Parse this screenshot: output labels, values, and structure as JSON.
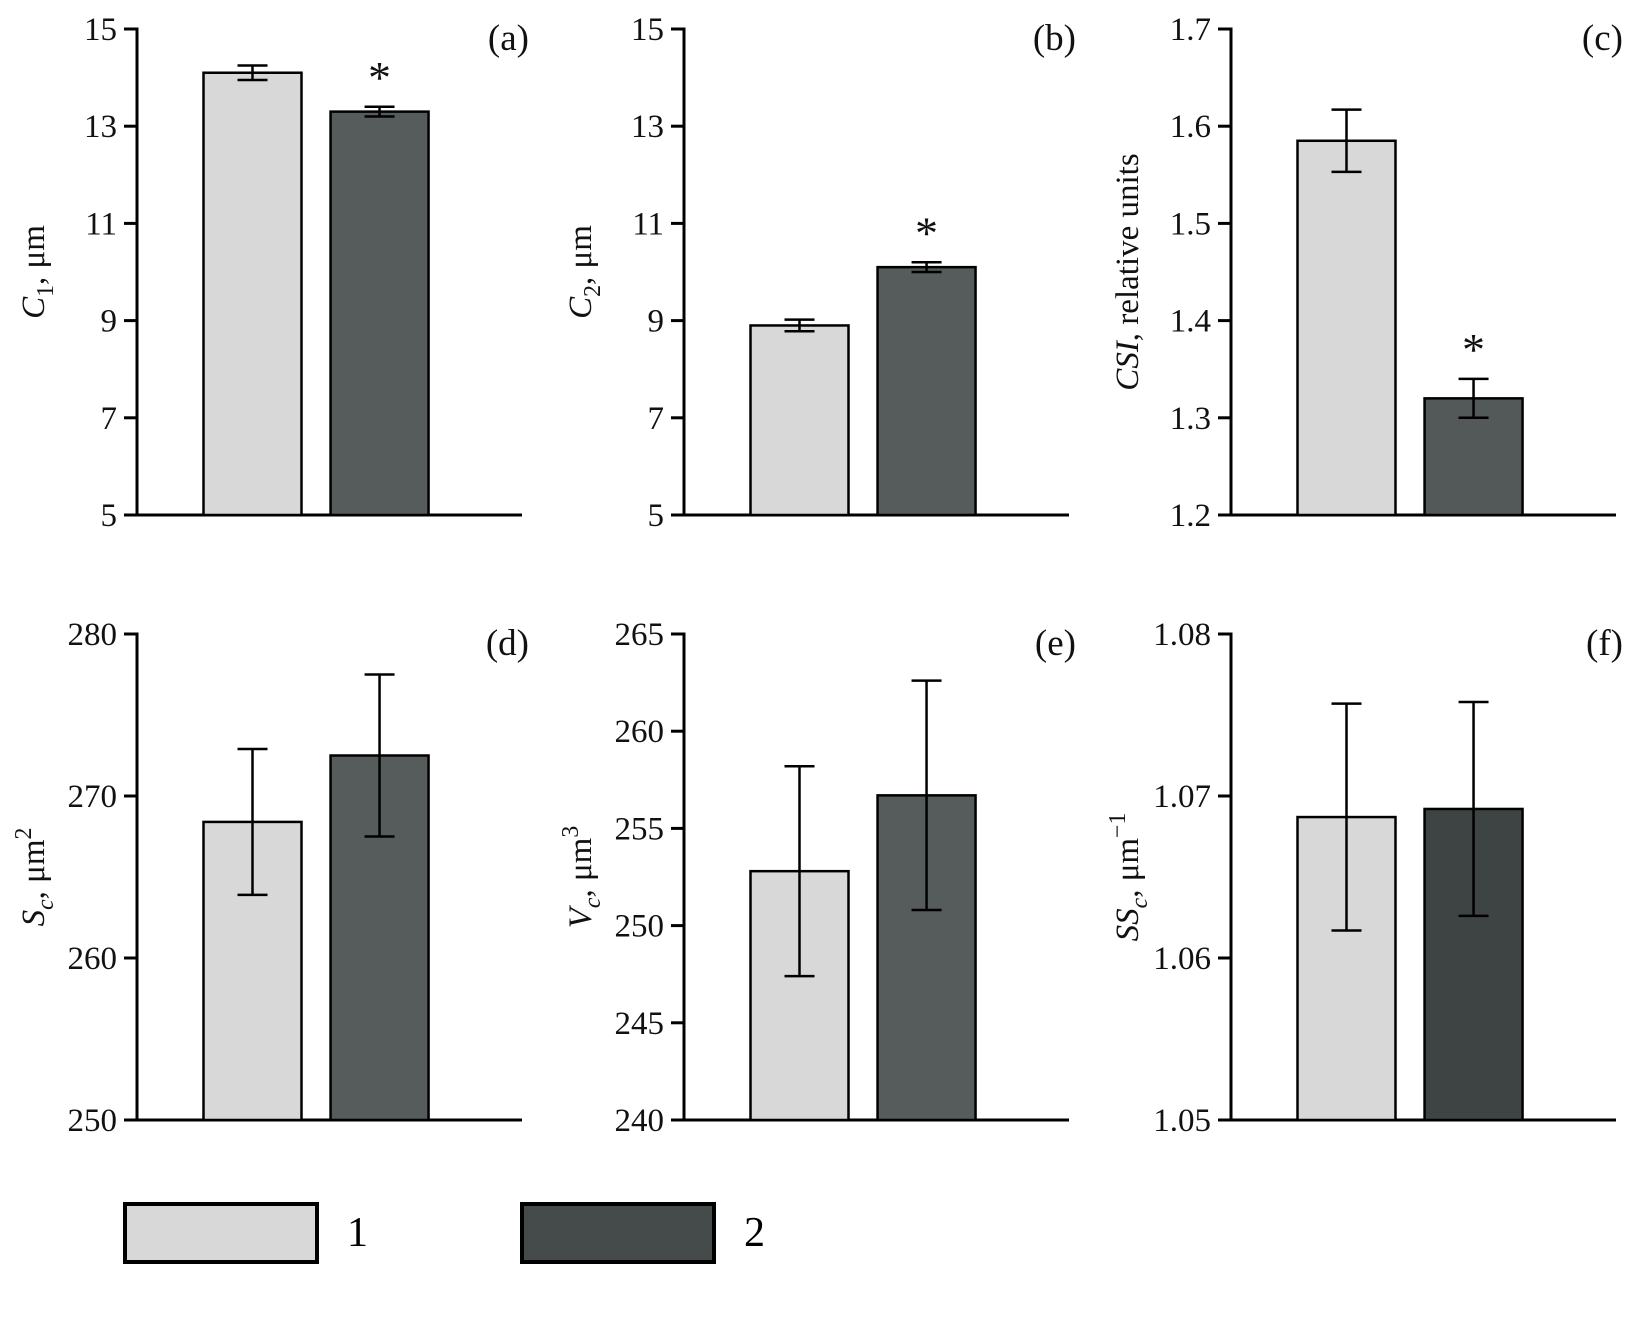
{
  "figure": {
    "background": "#ffffff"
  },
  "legend": {
    "items": [
      {
        "label": "1",
        "color": "#d8d8d8"
      },
      {
        "label": "2",
        "color": "#454b4b"
      }
    ]
  },
  "chart_data": [
    {
      "type": "bar",
      "panel": "(a)",
      "ylabel_text": "C1, μm",
      "ylabel": [
        {
          "t": "C",
          "i": true
        },
        {
          "t": "1",
          "sub": true
        },
        {
          "t": ", μm"
        }
      ],
      "categories": [
        "1",
        "2"
      ],
      "values": [
        14.1,
        13.3
      ],
      "errors": [
        0.15,
        0.1
      ],
      "significant": [
        false,
        true
      ],
      "ylim": [
        5,
        15
      ],
      "yticks": [
        "5",
        "7",
        "9",
        "11",
        "13",
        "15"
      ],
      "colors": [
        "#d8d8d8",
        "#565b5b"
      ],
      "grid": false,
      "legend_position": "bottom"
    },
    {
      "type": "bar",
      "panel": "(b)",
      "ylabel_text": "C2, μm",
      "ylabel": [
        {
          "t": "C",
          "i": true
        },
        {
          "t": "2",
          "sub": true
        },
        {
          "t": ", μm"
        }
      ],
      "categories": [
        "1",
        "2"
      ],
      "values": [
        8.9,
        10.1
      ],
      "errors": [
        0.12,
        0.1
      ],
      "significant": [
        false,
        true
      ],
      "ylim": [
        5,
        15
      ],
      "yticks": [
        "5",
        "7",
        "9",
        "11",
        "13",
        "15"
      ],
      "colors": [
        "#d8d8d8",
        "#565b5b"
      ],
      "grid": false,
      "legend_position": "bottom"
    },
    {
      "type": "bar",
      "panel": "(c)",
      "ylabel_text": "CSI, relative units",
      "ylabel": [
        {
          "t": "CSI",
          "i": true
        },
        {
          "t": ", relative units"
        }
      ],
      "categories": [
        "1",
        "2"
      ],
      "values": [
        1.585,
        1.32
      ],
      "errors": [
        0.032,
        0.02
      ],
      "significant": [
        false,
        true
      ],
      "ylim": [
        1.2,
        1.7
      ],
      "yticks": [
        "1.2",
        "1.3",
        "1.4",
        "1.5",
        "1.6",
        "1.7"
      ],
      "colors": [
        "#d8d8d8",
        "#535858"
      ],
      "grid": false,
      "legend_position": "bottom"
    },
    {
      "type": "bar",
      "panel": "(d)",
      "ylabel_text": "Sc, μm2",
      "ylabel": [
        {
          "t": "S",
          "i": true
        },
        {
          "t": "c",
          "sub": true,
          "i": true
        },
        {
          "t": ", μm"
        },
        {
          "t": "2",
          "sup": true
        }
      ],
      "categories": [
        "1",
        "2"
      ],
      "values": [
        268.4,
        272.5
      ],
      "errors": [
        4.5,
        5.0
      ],
      "significant": [
        false,
        false
      ],
      "ylim": [
        250,
        280
      ],
      "yticks": [
        "250",
        "260",
        "270",
        "280"
      ],
      "colors": [
        "#d8d8d8",
        "#565b5b"
      ],
      "grid": false,
      "legend_position": "bottom"
    },
    {
      "type": "bar",
      "panel": "(e)",
      "ylabel_text": "Vc, μm3",
      "ylabel": [
        {
          "t": "V",
          "i": true
        },
        {
          "t": "c",
          "sub": true,
          "i": true
        },
        {
          "t": ", μm"
        },
        {
          "t": "3",
          "sup": true
        }
      ],
      "categories": [
        "1",
        "2"
      ],
      "values": [
        252.8,
        256.7
      ],
      "errors": [
        5.4,
        5.9
      ],
      "significant": [
        false,
        false
      ],
      "ylim": [
        240,
        265
      ],
      "yticks": [
        "240",
        "245",
        "250",
        "255",
        "260",
        "265"
      ],
      "colors": [
        "#d8d8d8",
        "#565b5b"
      ],
      "grid": false,
      "legend_position": "bottom"
    },
    {
      "type": "bar",
      "panel": "(f)",
      "ylabel_text": "SSc, μm−1",
      "ylabel": [
        {
          "t": "SS",
          "i": true
        },
        {
          "t": "c",
          "sub": true,
          "i": true
        },
        {
          "t": ", μm"
        },
        {
          "t": "−1",
          "sup": true
        }
      ],
      "categories": [
        "1",
        "2"
      ],
      "values": [
        1.0687,
        1.0692
      ],
      "errors": [
        0.007,
        0.0066
      ],
      "significant": [
        false,
        false
      ],
      "ylim": [
        1.05,
        1.08
      ],
      "yticks": [
        "1.05",
        "1.06",
        "1.07",
        "1.08"
      ],
      "colors": [
        "#d8d8d8",
        "#3e4444"
      ],
      "grid": false,
      "legend_position": "bottom"
    }
  ]
}
